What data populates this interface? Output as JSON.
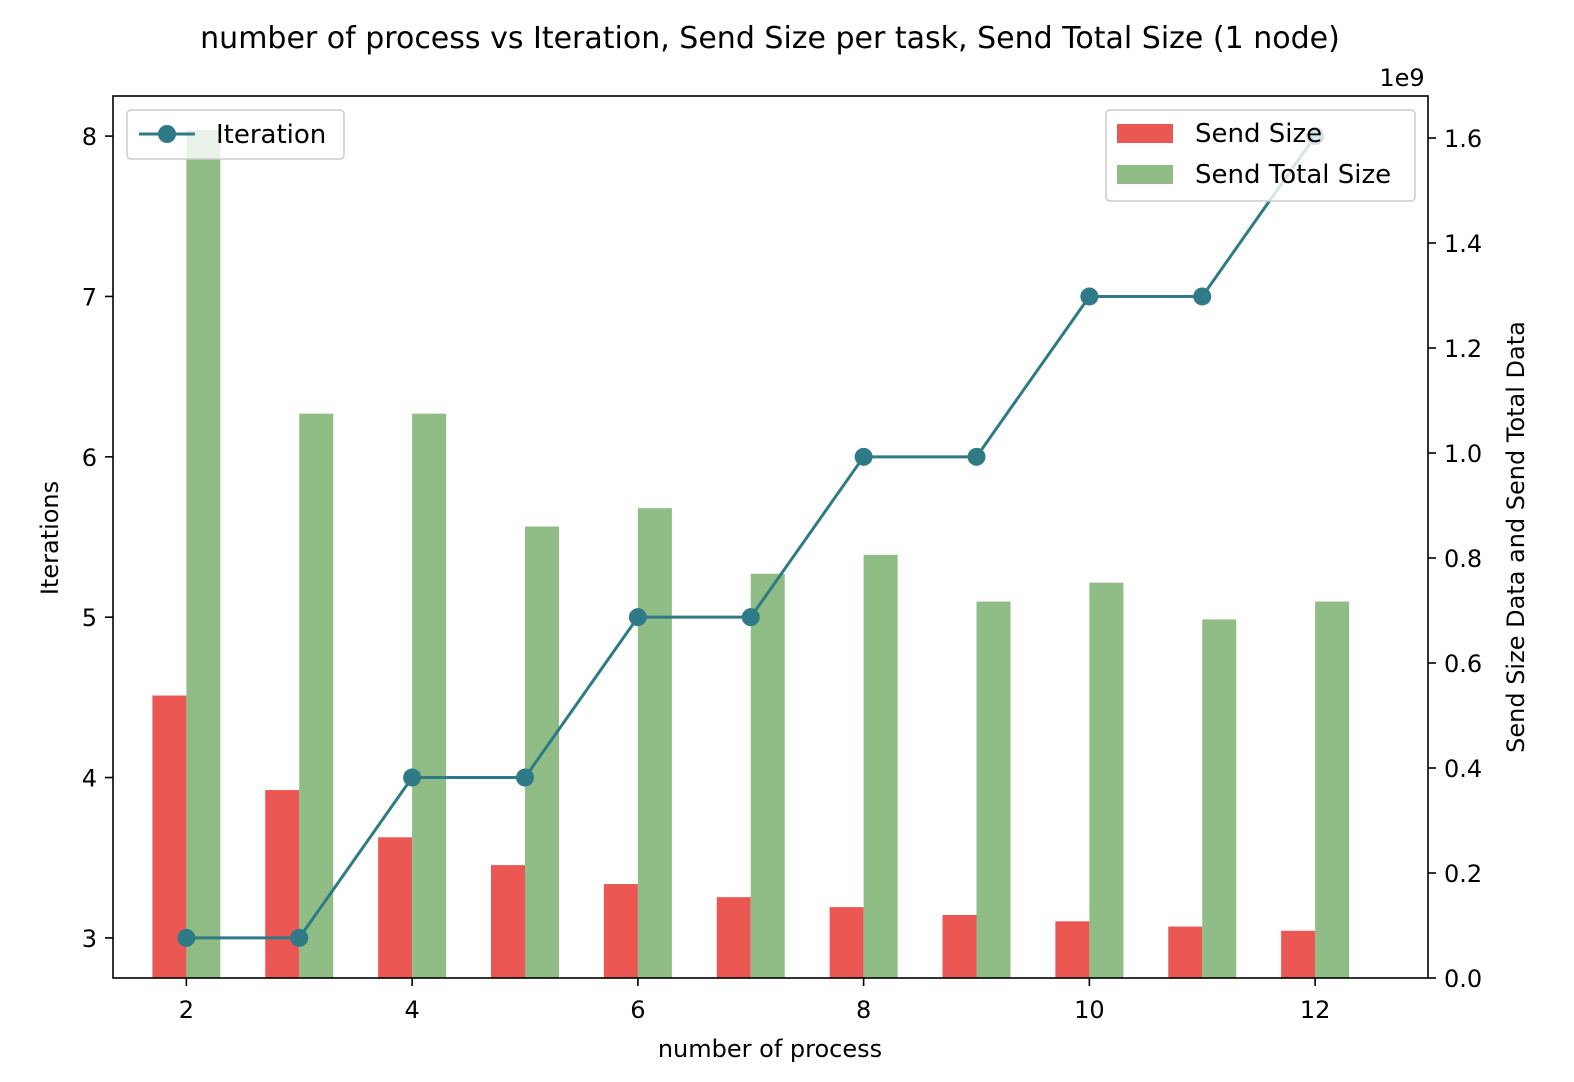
{
  "chart_data": {
    "type": "bar",
    "title": "number of process vs Iteration, Send Size per task, Send Total Size (1 node)",
    "xlabel": "number of process",
    "ylabel_left": "Iterations",
    "ylabel_right": "Send Size Data and Send Total Data",
    "right_axis_offset_text": "1e9",
    "x": [
      2,
      3,
      4,
      5,
      6,
      7,
      8,
      9,
      10,
      11,
      12
    ],
    "xlim": [
      1.35,
      13.0
    ],
    "ylim_left": [
      2.75,
      8.25
    ],
    "ylim_right": [
      0,
      1.68
    ],
    "x_ticks": [
      2,
      4,
      6,
      8,
      10,
      12
    ],
    "x_tick_labels": [
      "2",
      "4",
      "6",
      "8",
      "10",
      "12"
    ],
    "y_left_ticks": [
      3,
      4,
      5,
      6,
      7,
      8
    ],
    "y_left_tick_labels": [
      "3",
      "4",
      "5",
      "6",
      "7",
      "8"
    ],
    "y_right_ticks": [
      0,
      0.2,
      0.4,
      0.6,
      0.8,
      1.0,
      1.2,
      1.4,
      1.6
    ],
    "y_right_tick_labels": [
      "0.0",
      "0.2",
      "0.4",
      "0.6",
      "0.8",
      "1.0",
      "1.2",
      "1.4",
      "1.6"
    ],
    "series": [
      {
        "name": "Iteration",
        "kind": "line",
        "axis": "left",
        "color": "#2e7a86",
        "values": [
          3,
          3,
          4,
          4,
          5,
          5,
          6,
          6,
          7,
          7,
          8
        ]
      },
      {
        "name": "Send Size",
        "kind": "bar",
        "axis": "right",
        "color": "#e8413b",
        "values": [
          0.538,
          0.358,
          0.268,
          0.215,
          0.179,
          0.154,
          0.135,
          0.12,
          0.108,
          0.098,
          0.09
        ]
      },
      {
        "name": "Send Total Size",
        "kind": "bar",
        "axis": "right",
        "color": "#7fb474",
        "values": [
          1.615,
          1.075,
          1.075,
          0.86,
          0.895,
          0.77,
          0.806,
          0.717,
          0.753,
          0.683,
          0.717
        ]
      }
    ],
    "legends": [
      {
        "position": "upper-left",
        "entries": [
          "Iteration"
        ]
      },
      {
        "position": "upper-right",
        "entries": [
          "Send Size",
          "Send Total Size"
        ]
      }
    ],
    "grid": false
  }
}
